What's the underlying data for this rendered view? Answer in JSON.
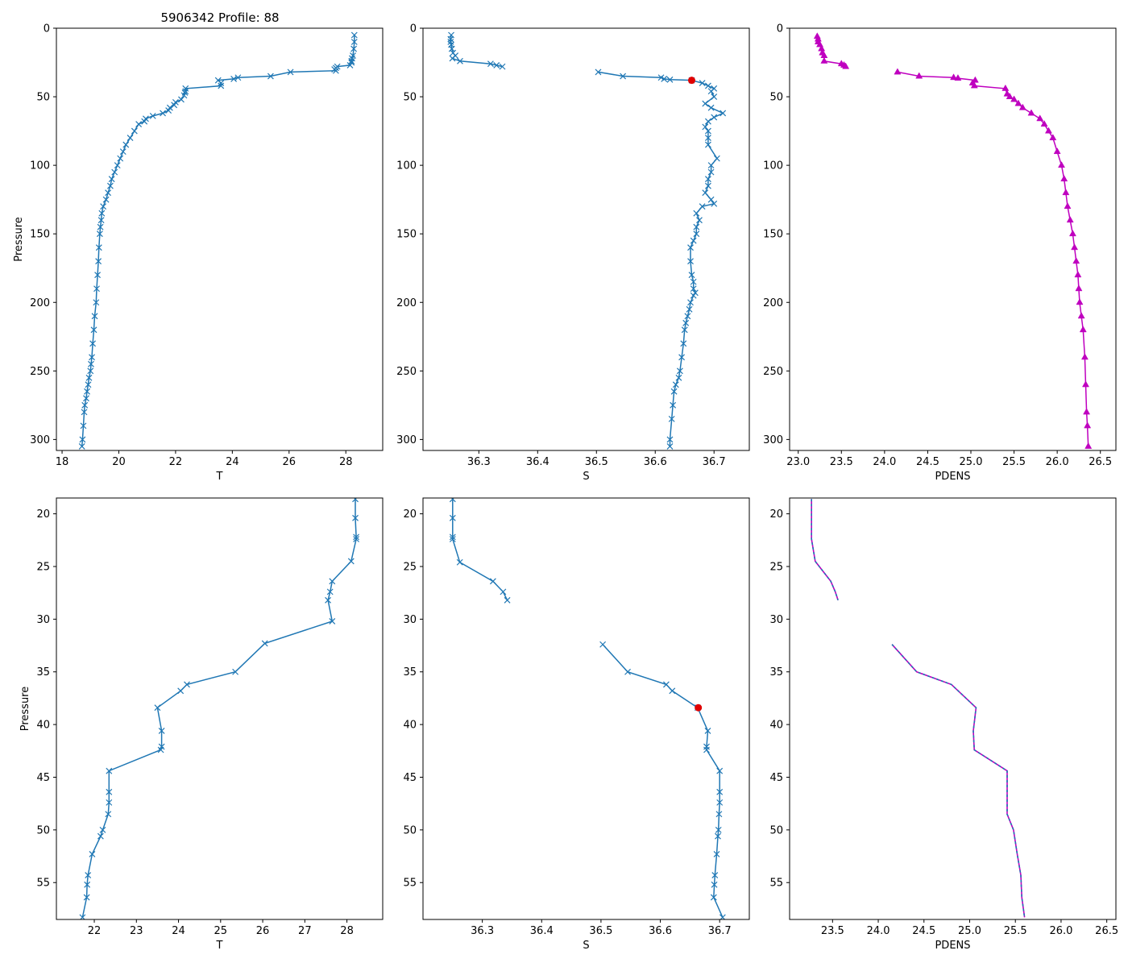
{
  "figure": {
    "title": "5906342 Profile: 88",
    "colors": {
      "line": "#1f77b4",
      "density": "#bf00bf",
      "flag": "#e00000",
      "axis": "#000000",
      "background": "#ffffff"
    }
  },
  "chart_data": [
    {
      "id": "t-full",
      "type": "line",
      "xlabel": "T",
      "ylabel": "Pressure",
      "xlim": [
        17.8,
        29.3
      ],
      "ylim": [
        308,
        0
      ],
      "xticks": [
        18,
        20,
        22,
        24,
        26,
        28
      ],
      "xtick_labels": [
        "18",
        "20",
        "22",
        "24",
        "26",
        "28"
      ],
      "yticks": [
        0,
        50,
        100,
        150,
        200,
        250,
        300
      ],
      "ytick_labels": [
        "0",
        "50",
        "100",
        "150",
        "200",
        "250",
        "300"
      ],
      "series": [
        {
          "name": "T",
          "style": "line-x",
          "x": [
            28.3,
            28.3,
            28.28,
            28.25,
            28.22,
            28.2,
            28.2,
            28.15,
            27.7,
            27.65,
            27.6,
            27.65,
            26.05,
            25.35,
            24.2,
            24.05,
            23.5,
            23.6,
            23.6,
            22.35,
            22.35,
            22.33,
            22.3,
            22.2,
            22.0,
            21.95,
            21.8,
            21.75,
            21.55,
            21.2,
            20.95,
            20.9,
            20.7,
            20.55,
            20.4,
            20.25,
            20.15,
            20.05,
            19.95,
            19.85,
            19.75,
            19.7,
            19.62,
            19.55,
            19.45,
            19.4,
            19.38,
            19.35,
            19.33,
            19.3,
            19.28,
            19.25,
            19.22,
            19.2,
            19.15,
            19.12,
            19.08,
            19.05,
            19.02,
            19.0,
            18.95,
            18.92,
            18.88,
            18.85,
            18.8,
            18.78,
            18.75,
            18.72,
            18.7
          ],
          "y": [
            5,
            10,
            15,
            20,
            22,
            24,
            25,
            27,
            28,
            29,
            30,
            31,
            32,
            35,
            36,
            37,
            38,
            40,
            42,
            44,
            46,
            47,
            49,
            52,
            54,
            56,
            58,
            60,
            62,
            64,
            66,
            68,
            70,
            75,
            80,
            85,
            90,
            95,
            100,
            105,
            110,
            115,
            120,
            125,
            130,
            135,
            140,
            145,
            150,
            160,
            170,
            180,
            190,
            200,
            210,
            220,
            230,
            240,
            245,
            250,
            255,
            260,
            265,
            270,
            275,
            280,
            290,
            300,
            305
          ]
        }
      ]
    },
    {
      "id": "s-full",
      "type": "line",
      "xlabel": "S",
      "ylabel": "",
      "xlim": [
        36.205,
        36.76
      ],
      "ylim": [
        308,
        0
      ],
      "xticks": [
        36.3,
        36.4,
        36.5,
        36.6,
        36.7
      ],
      "xtick_labels": [
        "36.3",
        "36.4",
        "36.5",
        "36.6",
        "36.7"
      ],
      "yticks": [
        0,
        50,
        100,
        150,
        200,
        250,
        300
      ],
      "ytick_labels": [
        "0",
        "50",
        "100",
        "150",
        "200",
        "250",
        "300"
      ],
      "series": [
        {
          "name": "S upper",
          "style": "line-x",
          "x": [
            36.253,
            36.252,
            36.252,
            36.253,
            36.254,
            36.256,
            36.26,
            36.255,
            36.268,
            36.32,
            36.33,
            36.34
          ],
          "y": [
            5,
            8,
            10,
            12,
            15,
            18,
            20,
            22,
            24,
            26,
            27,
            28
          ]
        },
        {
          "name": "S lower",
          "style": "line-x",
          "x": [
            36.503,
            36.545,
            36.61,
            36.615,
            36.625,
            36.662,
            36.68,
            36.69,
            36.7,
            36.695,
            36.7,
            36.685,
            36.695,
            36.715,
            36.7,
            36.69,
            36.685,
            36.69,
            36.69,
            36.69,
            36.705,
            36.695,
            36.695,
            36.69,
            36.69,
            36.685,
            36.695,
            36.7,
            36.68,
            36.67,
            36.675,
            36.67,
            36.67,
            36.665,
            36.66,
            36.66,
            36.662,
            36.665,
            36.665,
            36.668,
            36.665,
            36.66,
            36.658,
            36.655,
            36.652,
            36.65,
            36.648,
            36.645,
            36.642,
            36.64,
            36.635,
            36.632,
            36.63,
            36.628,
            36.625,
            36.625
          ],
          "y": [
            32,
            35,
            36,
            37,
            37.5,
            38,
            40,
            42,
            44,
            46,
            50,
            55,
            58,
            62,
            65,
            68,
            72,
            75,
            80,
            85,
            95,
            100,
            105,
            110,
            115,
            120,
            125,
            128,
            130,
            135,
            140,
            145,
            150,
            155,
            160,
            170,
            180,
            185,
            190,
            193,
            195,
            200,
            205,
            210,
            215,
            220,
            230,
            240,
            250,
            255,
            260,
            265,
            275,
            285,
            300,
            305
          ]
        },
        {
          "name": "flagged point",
          "style": "dot",
          "x": [
            36.662
          ],
          "y": [
            38
          ]
        }
      ]
    },
    {
      "id": "pdens-full",
      "type": "line",
      "xlabel": "PDENS",
      "ylabel": "",
      "xlim": [
        22.9,
        26.68
      ],
      "ylim": [
        308,
        0
      ],
      "xticks": [
        23.0,
        23.5,
        24.0,
        24.5,
        25.0,
        25.5,
        26.0,
        26.5
      ],
      "xtick_labels": [
        "23.0",
        "23.5",
        "24.0",
        "24.5",
        "25.0",
        "25.5",
        "26.0",
        "26.5"
      ],
      "yticks": [
        0,
        50,
        100,
        150,
        200,
        250,
        300
      ],
      "ytick_labels": [
        "0",
        "50",
        "100",
        "150",
        "200",
        "250",
        "300"
      ],
      "series": [
        {
          "name": "PDENS upper",
          "style": "line-tri",
          "x": [
            23.22,
            23.23,
            23.23,
            23.25,
            23.27,
            23.28,
            23.3,
            23.3,
            23.5,
            23.53,
            23.55
          ],
          "y": [
            6,
            8,
            10,
            12,
            15,
            18,
            20,
            24,
            26,
            27,
            28
          ]
        },
        {
          "name": "PDENS lower",
          "style": "line-tri",
          "x": [
            24.15,
            24.4,
            24.8,
            24.85,
            25.05,
            25.02,
            25.04,
            25.4,
            25.42,
            25.45,
            25.5,
            25.55,
            25.6,
            25.7,
            25.8,
            25.85,
            25.9,
            25.95,
            26.0,
            26.05,
            26.08,
            26.1,
            26.12,
            26.15,
            26.18,
            26.2,
            26.22,
            26.24,
            26.25,
            26.26,
            26.28,
            26.3,
            26.32,
            26.33,
            26.34,
            26.35,
            26.36
          ],
          "y": [
            32,
            35,
            36,
            36.5,
            38,
            40,
            42,
            44,
            48,
            50,
            52,
            55,
            58,
            62,
            66,
            70,
            75,
            80,
            90,
            100,
            110,
            120,
            130,
            140,
            150,
            160,
            170,
            180,
            190,
            200,
            210,
            220,
            240,
            260,
            280,
            290,
            305
          ]
        }
      ]
    },
    {
      "id": "t-zoom",
      "type": "line",
      "xlabel": "T",
      "ylabel": "Pressure",
      "xlim": [
        21.1,
        28.85
      ],
      "ylim": [
        58.5,
        18.5
      ],
      "xticks": [
        22,
        23,
        24,
        25,
        26,
        27,
        28
      ],
      "xtick_labels": [
        "22",
        "23",
        "24",
        "25",
        "26",
        "27",
        "28"
      ],
      "yticks": [
        20,
        25,
        30,
        35,
        40,
        45,
        50,
        55
      ],
      "ytick_labels": [
        "20",
        "25",
        "30",
        "35",
        "40",
        "45",
        "50",
        "55"
      ],
      "series": [
        {
          "name": "T",
          "style": "line-x",
          "x": [
            28.2,
            28.2,
            28.22,
            28.22,
            28.1,
            27.65,
            27.6,
            27.55,
            27.65,
            26.05,
            25.35,
            24.2,
            24.05,
            23.5,
            23.6,
            23.6,
            23.58,
            22.35,
            22.35,
            22.35,
            22.33,
            22.2,
            22.15,
            21.95,
            21.85,
            21.83,
            21.82,
            21.72
          ],
          "y": [
            18.6,
            20.4,
            22.2,
            22.4,
            24.5,
            26.4,
            27.4,
            28.2,
            30.2,
            32.3,
            35.0,
            36.2,
            36.8,
            38.4,
            40.6,
            42.1,
            42.4,
            44.4,
            46.4,
            47.4,
            48.5,
            50.0,
            50.6,
            52.3,
            54.3,
            55.2,
            56.4,
            58.3
          ]
        }
      ]
    },
    {
      "id": "s-zoom",
      "type": "line",
      "xlabel": "S",
      "ylabel": "",
      "xlim": [
        36.2,
        36.75
      ],
      "ylim": [
        58.5,
        18.5
      ],
      "xticks": [
        36.3,
        36.4,
        36.5,
        36.6,
        36.7
      ],
      "xtick_labels": [
        "36.3",
        "36.4",
        "36.5",
        "36.6",
        "36.7"
      ],
      "yticks": [
        20,
        25,
        30,
        35,
        40,
        45,
        50,
        55
      ],
      "ytick_labels": [
        "20",
        "25",
        "30",
        "35",
        "40",
        "45",
        "50",
        "55"
      ],
      "series": [
        {
          "name": "S upper",
          "style": "line-x",
          "x": [
            36.25,
            36.25,
            36.25,
            36.25,
            36.262,
            36.318,
            36.335,
            36.342
          ],
          "y": [
            18.6,
            20.4,
            22.2,
            22.4,
            24.6,
            26.4,
            27.4,
            28.2
          ]
        },
        {
          "name": "S lower",
          "style": "line-x",
          "x": [
            36.503,
            36.545,
            36.61,
            36.62,
            36.663,
            36.68,
            36.678,
            36.678,
            36.7,
            36.7,
            36.7,
            36.699,
            36.698,
            36.697,
            36.695,
            36.692,
            36.691,
            36.69,
            36.705
          ],
          "y": [
            32.4,
            35.0,
            36.2,
            36.8,
            38.4,
            40.6,
            42.1,
            42.4,
            44.4,
            46.4,
            47.4,
            48.5,
            50.0,
            50.6,
            52.3,
            54.3,
            55.2,
            56.4,
            58.3
          ]
        },
        {
          "name": "flagged point",
          "style": "dot",
          "x": [
            36.664
          ],
          "y": [
            38.4
          ]
        }
      ]
    },
    {
      "id": "pdens-zoom",
      "type": "line",
      "xlabel": "PDENS",
      "ylabel": "",
      "xlim": [
        23.03,
        26.6
      ],
      "ylim": [
        58.5,
        18.5
      ],
      "xticks": [
        23.5,
        24.0,
        24.5,
        25.0,
        25.5,
        26.0,
        26.5
      ],
      "xtick_labels": [
        "23.5",
        "24.0",
        "24.5",
        "25.0",
        "25.5",
        "26.0",
        "26.5"
      ],
      "yticks": [
        20,
        25,
        30,
        35,
        40,
        45,
        50,
        55
      ],
      "ytick_labels": [
        "20",
        "25",
        "30",
        "35",
        "40",
        "45",
        "50",
        "55"
      ],
      "series": [
        {
          "name": "PDENS upper",
          "style": "line-dashed",
          "x": [
            23.27,
            23.27,
            23.27,
            23.27,
            23.31,
            23.48,
            23.53,
            23.56
          ],
          "y": [
            18.6,
            20.4,
            22.2,
            22.4,
            24.5,
            26.4,
            27.4,
            28.2
          ]
        },
        {
          "name": "PDENS lower",
          "style": "line-dashed",
          "x": [
            24.15,
            24.42,
            24.8,
            25.07,
            25.04,
            25.05,
            25.41,
            25.41,
            25.41,
            25.48,
            25.52,
            25.56,
            25.57,
            25.6
          ],
          "y": [
            32.4,
            35.0,
            36.2,
            38.4,
            40.6,
            42.4,
            44.4,
            47.0,
            48.5,
            50.0,
            52.3,
            54.3,
            56.4,
            58.3
          ]
        }
      ]
    }
  ]
}
